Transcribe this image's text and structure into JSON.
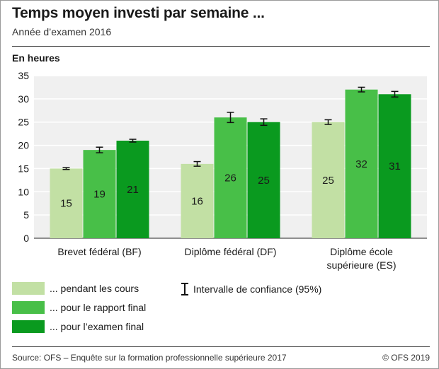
{
  "header": {
    "title": "Temps moyen investi par semaine ...",
    "subtitle": "Année d’examen 2016"
  },
  "chart_data": {
    "type": "bar",
    "ylabel": "En heures",
    "ylim": [
      0,
      35
    ],
    "yticks": [
      0,
      5,
      10,
      15,
      20,
      25,
      30,
      35
    ],
    "grid": true,
    "categories": [
      [
        "Brevet fédéral (BF)"
      ],
      [
        "Diplôme fédéral (DF)"
      ],
      [
        "Diplôme école",
        "supérieure (ES)"
      ]
    ],
    "series": [
      {
        "name": "... pendant les cours",
        "color": "#c2e0a4",
        "values": [
          15,
          16,
          25
        ],
        "ci": [
          [
            14.8,
            15.2
          ],
          [
            15.5,
            16.5
          ],
          [
            24.5,
            25.5
          ]
        ]
      },
      {
        "name": "... pour le rapport final",
        "color": "#48bf48",
        "values": [
          19,
          26,
          32
        ],
        "ci": [
          [
            18.4,
            19.6
          ],
          [
            24.9,
            27.1
          ],
          [
            31.5,
            32.5
          ]
        ]
      },
      {
        "name": "... pour l’examen final",
        "color": "#0a9a1f",
        "values": [
          21,
          25,
          31
        ],
        "ci": [
          [
            20.7,
            21.3
          ],
          [
            24.3,
            25.7
          ],
          [
            30.4,
            31.6
          ]
        ]
      }
    ],
    "data_labels": true,
    "confidence_legend": "Intervalle de confiance (95%)",
    "legend_position": "bottom-left"
  },
  "footer": {
    "source": "Source: OFS – Enquête sur la formation professionnelle supérieure 2017",
    "copyright": "© OFS 2019"
  }
}
